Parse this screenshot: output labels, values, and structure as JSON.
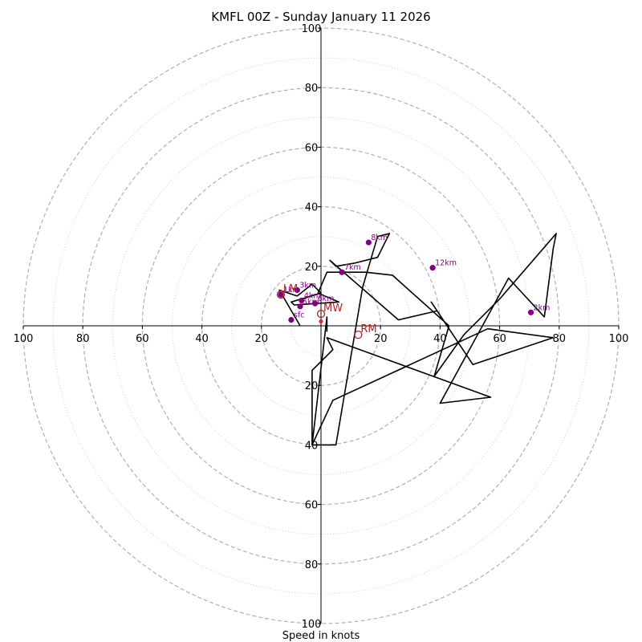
{
  "chart_data": {
    "type": "hodograph",
    "title": "KMFL 00Z - Sunday January 11 2026",
    "xlabel": "Speed in knots",
    "xlim": [
      -100,
      100
    ],
    "ylim": [
      -100,
      100
    ],
    "rings_dashed": [
      20,
      40,
      60,
      80,
      100
    ],
    "rings_dotted": [
      10,
      30,
      50,
      70,
      90
    ],
    "x_tick_labels": [
      "100",
      "80",
      "60",
      "40",
      "20",
      "20",
      "40",
      "60",
      "80",
      "100"
    ],
    "x_tick_values": [
      -100,
      -80,
      -60,
      -40,
      -20,
      20,
      40,
      60,
      80,
      100
    ],
    "y_tick_labels": [
      "100",
      "80",
      "60",
      "40",
      "20",
      "20",
      "40",
      "60",
      "80",
      "100"
    ],
    "y_tick_values": [
      100,
      80,
      60,
      40,
      20,
      -20,
      -40,
      -60,
      -80,
      -100
    ],
    "trace_u": [
      -7,
      -14,
      -8,
      -3,
      0,
      -10,
      -9,
      6,
      6,
      -1,
      2,
      15,
      24,
      43,
      38,
      48,
      60,
      79,
      78,
      75,
      63,
      40,
      57,
      2,
      4,
      -3,
      -3,
      5,
      14,
      19,
      23,
      19,
      11,
      5,
      3,
      26,
      39,
      37,
      51,
      78,
      56,
      4,
      -3,
      2,
      2
    ],
    "trace_v": [
      0,
      12,
      10,
      14,
      11,
      8,
      7,
      8,
      8,
      11,
      18,
      18,
      17,
      0,
      -17,
      -3,
      9,
      31,
      26,
      3,
      16,
      -26,
      -24,
      -4,
      -8,
      -15,
      -40,
      -40,
      13,
      30,
      31,
      23,
      21,
      20,
      22,
      2,
      5,
      8,
      -13,
      -4,
      -1,
      -25,
      -40,
      3,
      -2
    ],
    "height_markers": [
      {
        "label": "1km",
        "u": -13.5,
        "v": 10.5
      },
      {
        "label": "2km",
        "u": 70.5,
        "v": 4.5
      },
      {
        "label": "3km",
        "u": -8.0,
        "v": 12.0
      },
      {
        "label": "4km",
        "u": -6.5,
        "v": 8.5
      },
      {
        "label": "5km",
        "u": -7.0,
        "v": 6.5
      },
      {
        "label": "6km",
        "u": -2.0,
        "v": 7.5
      },
      {
        "label": "7km",
        "u": 7.0,
        "v": 18.0
      },
      {
        "label": "8km",
        "u": 16.0,
        "v": 28.0
      },
      {
        "label": "12km",
        "u": 37.5,
        "v": 19.5
      },
      {
        "label": "sfc",
        "u": -10.0,
        "v": 2.0
      }
    ],
    "motion_markers": [
      {
        "label": "LM",
        "u": -13.5,
        "v": 10.5
      },
      {
        "label": "MW",
        "u": 0.0,
        "v": 4.0
      },
      {
        "label": "RM",
        "u": 12.5,
        "v": -3.0
      }
    ],
    "colors": {
      "trace": "#000000",
      "height_marker": "#800080",
      "motion_marker": "#b22222",
      "grid": "#b0b0b0",
      "storm_motion_dot": "#d62728"
    }
  }
}
